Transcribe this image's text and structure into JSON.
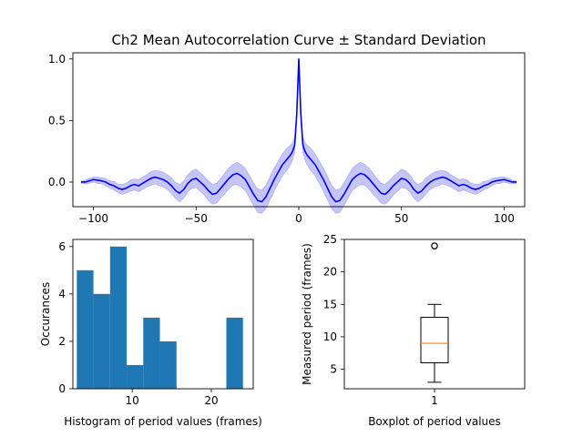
{
  "chart_data": [
    {
      "type": "line",
      "title": "Ch2 Mean Autocorrelation Curve ± Standard Deviation",
      "xlabel": "",
      "ylabel": "",
      "xlim": [
        -110,
        110
      ],
      "ylim": [
        -0.2,
        1.05
      ],
      "x_ticks": [
        "−100",
        "−50",
        "0",
        "50",
        "100"
      ],
      "y_ticks": [
        "0.0",
        "0.5",
        "1.0"
      ],
      "series_color": "#0000ff",
      "band_color": "#8c8cf2",
      "series": [
        {
          "x": [
            -106,
            -104,
            -102,
            -100,
            -98,
            -96,
            -94,
            -92,
            -90,
            -88,
            -86,
            -84,
            -82,
            -80,
            -78,
            -76,
            -74,
            -72,
            -70,
            -68,
            -66,
            -64,
            -62,
            -60,
            -58,
            -56,
            -54,
            -52,
            -50,
            -48,
            -46,
            -44,
            -42,
            -40,
            -38,
            -36,
            -34,
            -32,
            -30,
            -28,
            -26,
            -24,
            -22,
            -20,
            -18,
            -16,
            -14,
            -12,
            -10,
            -8,
            -6,
            -4,
            -3,
            -2,
            -1,
            0,
            1,
            2,
            3,
            4,
            6,
            8,
            10,
            12,
            14,
            16,
            18,
            20,
            22,
            24,
            26,
            28,
            30,
            32,
            34,
            36,
            38,
            40,
            42,
            44,
            46,
            48,
            50,
            52,
            54,
            56,
            58,
            60,
            62,
            64,
            66,
            68,
            70,
            72,
            74,
            76,
            78,
            80,
            82,
            84,
            86,
            88,
            90,
            92,
            94,
            96,
            98,
            100,
            102,
            104,
            106
          ],
          "y": [
            0.0,
            0.0,
            0.01,
            0.02,
            0.015,
            0.01,
            0.0,
            -0.02,
            -0.03,
            -0.05,
            -0.06,
            -0.05,
            -0.03,
            -0.02,
            -0.03,
            -0.01,
            0.01,
            0.03,
            0.04,
            0.03,
            0.02,
            0.0,
            -0.03,
            -0.07,
            -0.09,
            -0.06,
            -0.01,
            0.02,
            0.03,
            0.0,
            -0.03,
            -0.07,
            -0.1,
            -0.09,
            -0.05,
            -0.01,
            0.03,
            0.06,
            0.07,
            0.05,
            0.02,
            -0.04,
            -0.1,
            -0.15,
            -0.16,
            -0.12,
            -0.05,
            0.02,
            0.08,
            0.14,
            0.18,
            0.22,
            0.25,
            0.3,
            0.55,
            1.0,
            0.55,
            0.3,
            0.25,
            0.22,
            0.18,
            0.14,
            0.08,
            0.02,
            -0.05,
            -0.12,
            -0.16,
            -0.15,
            -0.1,
            -0.04,
            0.02,
            0.05,
            0.07,
            0.06,
            0.03,
            -0.01,
            -0.05,
            -0.09,
            -0.1,
            -0.07,
            -0.03,
            0.0,
            0.03,
            0.02,
            -0.01,
            -0.06,
            -0.09,
            -0.07,
            -0.03,
            0.0,
            0.02,
            0.03,
            0.04,
            0.03,
            0.01,
            -0.01,
            -0.03,
            -0.02,
            -0.03,
            -0.05,
            -0.06,
            -0.05,
            -0.03,
            -0.02,
            0.0,
            0.01,
            0.015,
            0.02,
            0.01,
            0.0,
            0.0
          ],
          "std": [
            0.01,
            0.015,
            0.02,
            0.02,
            0.025,
            0.025,
            0.03,
            0.03,
            0.035,
            0.035,
            0.04,
            0.04,
            0.045,
            0.045,
            0.05,
            0.05,
            0.05,
            0.055,
            0.055,
            0.06,
            0.06,
            0.06,
            0.065,
            0.065,
            0.07,
            0.07,
            0.07,
            0.07,
            0.075,
            0.075,
            0.075,
            0.08,
            0.08,
            0.08,
            0.08,
            0.085,
            0.085,
            0.085,
            0.09,
            0.09,
            0.09,
            0.09,
            0.09,
            0.095,
            0.095,
            0.095,
            0.095,
            0.095,
            0.09,
            0.09,
            0.09,
            0.08,
            0.07,
            0.06,
            0.03,
            0.0,
            0.03,
            0.06,
            0.07,
            0.08,
            0.09,
            0.09,
            0.09,
            0.095,
            0.095,
            0.095,
            0.095,
            0.095,
            0.09,
            0.09,
            0.09,
            0.09,
            0.09,
            0.085,
            0.085,
            0.085,
            0.08,
            0.08,
            0.08,
            0.08,
            0.075,
            0.075,
            0.075,
            0.07,
            0.07,
            0.07,
            0.07,
            0.065,
            0.065,
            0.06,
            0.06,
            0.06,
            0.055,
            0.055,
            0.05,
            0.05,
            0.05,
            0.045,
            0.045,
            0.04,
            0.04,
            0.035,
            0.035,
            0.03,
            0.03,
            0.025,
            0.025,
            0.02,
            0.02,
            0.015,
            0.01
          ]
        }
      ]
    },
    {
      "type": "bar",
      "title": "",
      "xlabel": "Histogram of period values (frames)",
      "ylabel": "Occurances",
      "xlim": [
        2.5,
        25.3
      ],
      "ylim": [
        0,
        6.3
      ],
      "x_ticks": [
        "10",
        "20"
      ],
      "y_ticks": [
        "0",
        "2",
        "4",
        "6"
      ],
      "bar_color": "#1f77b4",
      "bins": [
        [
          3.0,
          5.1
        ],
        [
          5.1,
          7.2
        ],
        [
          7.2,
          9.3
        ],
        [
          9.3,
          11.4
        ],
        [
          11.4,
          13.5
        ],
        [
          13.5,
          15.6
        ],
        [
          15.6,
          17.7
        ],
        [
          17.7,
          19.8
        ],
        [
          19.8,
          21.9
        ],
        [
          21.9,
          24.0
        ]
      ],
      "values": [
        5,
        4,
        6,
        1,
        3,
        2,
        0,
        0,
        0,
        3
      ]
    },
    {
      "type": "box",
      "title": "",
      "xlabel": "Boxplot of period values",
      "ylabel": "Measured period (frames)",
      "ylim": [
        2.0,
        25.0
      ],
      "x_ticks": [
        "1"
      ],
      "y_ticks": [
        "5",
        "10",
        "15",
        "20",
        "25"
      ],
      "median_color": "#ff7f0e",
      "stats": {
        "whisker_low": 3,
        "q1": 6,
        "median": 9,
        "q3": 13,
        "whisker_high": 15,
        "outliers": [
          24,
          24,
          24
        ]
      }
    }
  ]
}
